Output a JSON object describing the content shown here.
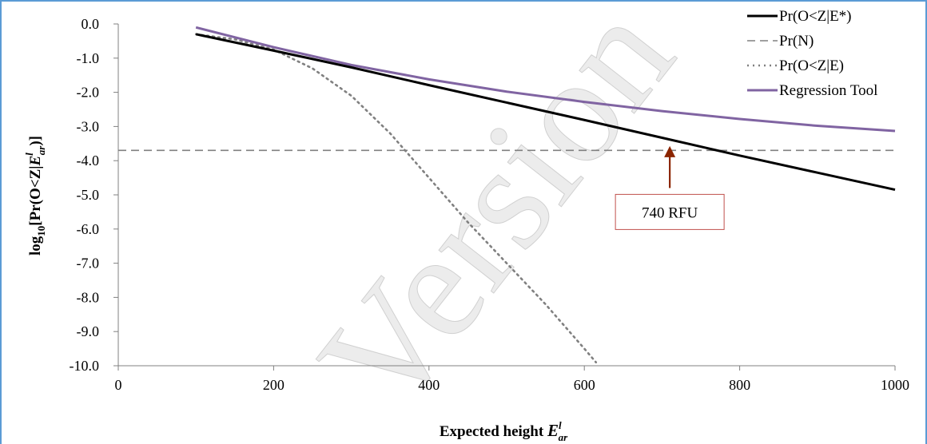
{
  "chart_data": {
    "type": "line",
    "title": "",
    "xlabel_main": "Expected height ",
    "xlabel_var": "E",
    "xlabel_sup": "l",
    "xlabel_sub": "ar",
    "ylabel_pre": "log",
    "ylabel_sub10": "10",
    "ylabel_mid": "[Pr(O<Z|",
    "ylabel_var": "E",
    "ylabel_sup": "l",
    "ylabel_sub": "ar",
    "ylabel_post": ")]",
    "xlim": [
      0,
      1000
    ],
    "ylim": [
      -10,
      0
    ],
    "x_ticks": [
      0,
      200,
      400,
      600,
      800,
      1000
    ],
    "x_tick_labels": [
      "0",
      "200",
      "400",
      "600",
      "800",
      "1000"
    ],
    "y_ticks": [
      0,
      -1,
      -2,
      -3,
      -4,
      -5,
      -6,
      -7,
      -8,
      -9,
      -10
    ],
    "y_tick_labels": [
      "0.0",
      "-1.0",
      "-2.0",
      "-3.0",
      "-4.0",
      "-5.0",
      "-6.0",
      "-7.0",
      "-8.0",
      "-9.0",
      "-10.0"
    ],
    "grid": false,
    "legend_position": "top-right",
    "series": [
      {
        "name": "Pr(O<Z|E*)",
        "color": "#000000",
        "style": "solid",
        "x": [
          100,
          200,
          300,
          400,
          500,
          600,
          700,
          800,
          900,
          1000
        ],
        "y": [
          -0.3,
          -0.78,
          -1.27,
          -1.79,
          -2.3,
          -2.81,
          -3.33,
          -3.85,
          -4.35,
          -4.85
        ]
      },
      {
        "name": "Pr(N)",
        "color": "#808080",
        "style": "dashed",
        "x": [
          0,
          1000
        ],
        "y": [
          -3.7,
          -3.7
        ]
      },
      {
        "name": "Pr(O<Z|E)",
        "color": "#808080",
        "style": "dotted",
        "x": [
          100,
          150,
          200,
          250,
          300,
          350,
          400,
          450,
          500,
          550,
          600,
          615
        ],
        "y": [
          -0.3,
          -0.45,
          -0.75,
          -1.3,
          -2.1,
          -3.2,
          -4.5,
          -5.8,
          -7.0,
          -8.2,
          -9.5,
          -9.9
        ]
      },
      {
        "name": "Regression Tool",
        "color": "#8064a2",
        "style": "solid",
        "x": [
          100,
          200,
          300,
          400,
          500,
          600,
          700,
          800,
          900,
          1000
        ],
        "y": [
          -0.1,
          -0.68,
          -1.2,
          -1.62,
          -1.98,
          -2.28,
          -2.55,
          -2.78,
          -2.98,
          -3.13
        ]
      }
    ],
    "annotation": {
      "text": "740 RFU",
      "arrow_x": 710,
      "arrow_y_tip": -3.62,
      "arrow_y_base": -4.8,
      "box_center_x": 710,
      "box_center_y": -5.5,
      "color": "#c0504d",
      "arrow_color": "#8b2500"
    },
    "watermark": "Version"
  }
}
